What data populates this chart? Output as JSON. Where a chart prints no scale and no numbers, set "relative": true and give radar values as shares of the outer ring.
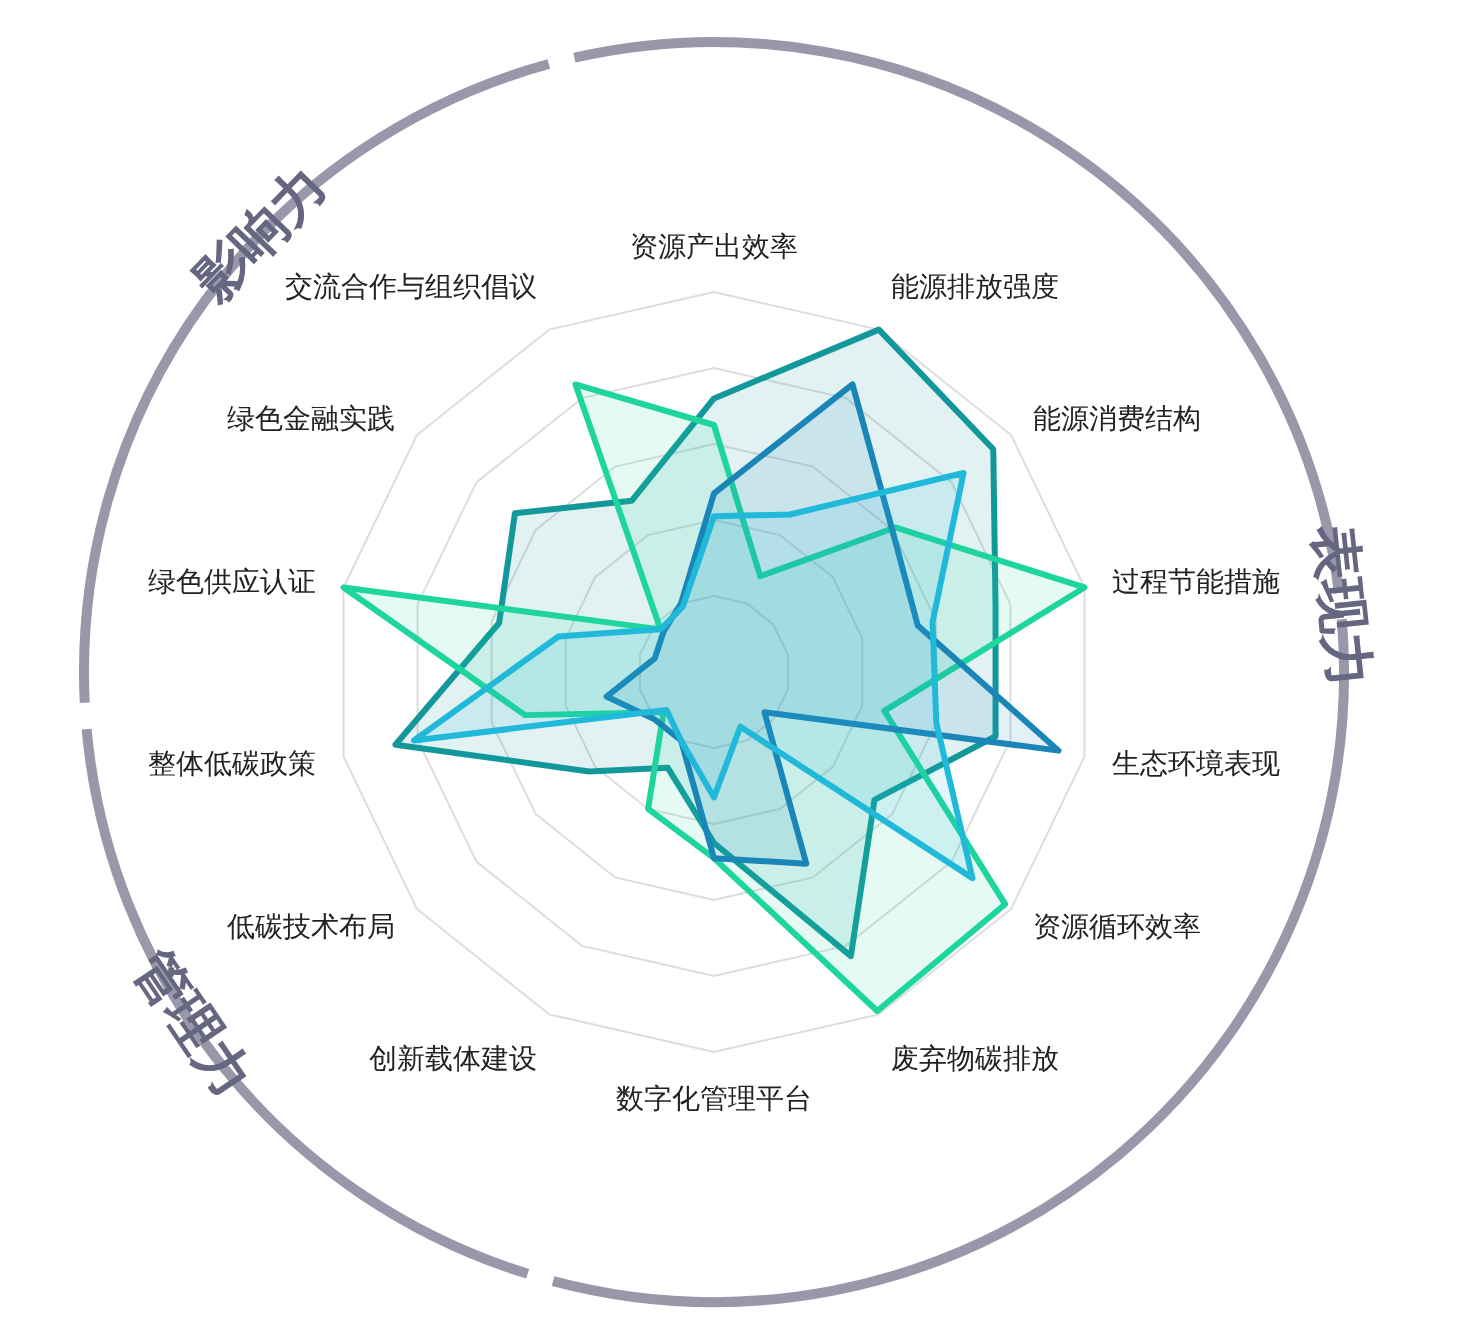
{
  "chart_data": {
    "type": "radar",
    "relative": true,
    "grid": true,
    "categories": [
      "资源产出效率",
      "能源排放强度",
      "能源消费结构",
      "过程节能措施",
      "生态环境表现",
      "资源循环效率",
      "废弃物碳排放",
      "数字化管理平台",
      "创新载体建设",
      "低碳技术布局",
      "整体低碳政策",
      "绿色供应认证",
      "绿色金融实践",
      "交流合作与组织倡议"
    ],
    "series": [
      {
        "color": "#12989a",
        "values": [
          0.72,
          1.0,
          0.94,
          0.76,
          0.76,
          0.54,
          0.83,
          0.45,
          0.28,
          0.42,
          0.86,
          0.58,
          0.67,
          0.5
        ]
      },
      {
        "color": "#1dd59d",
        "values": [
          0.65,
          0.28,
          0.61,
          1.0,
          0.46,
          0.98,
          0.99,
          0.49,
          0.4,
          0.17,
          0.51,
          1.0,
          0.18,
          0.84
        ]
      },
      {
        "color": "#1a86b8",
        "values": [
          0.47,
          0.84,
          0.6,
          0.55,
          0.93,
          0.17,
          0.56,
          0.49,
          0.2,
          0.2,
          0.29,
          0.16,
          0.17,
          0.2
        ]
      },
      {
        "color": "#20b9da",
        "values": [
          0.41,
          0.46,
          0.84,
          0.59,
          0.6,
          0.87,
          0.16,
          0.33,
          0.2,
          0.16,
          0.81,
          0.42,
          0.18,
          0.19
        ]
      }
    ],
    "annotations": [
      "影响力",
      "表现力",
      "管理力"
    ]
  }
}
